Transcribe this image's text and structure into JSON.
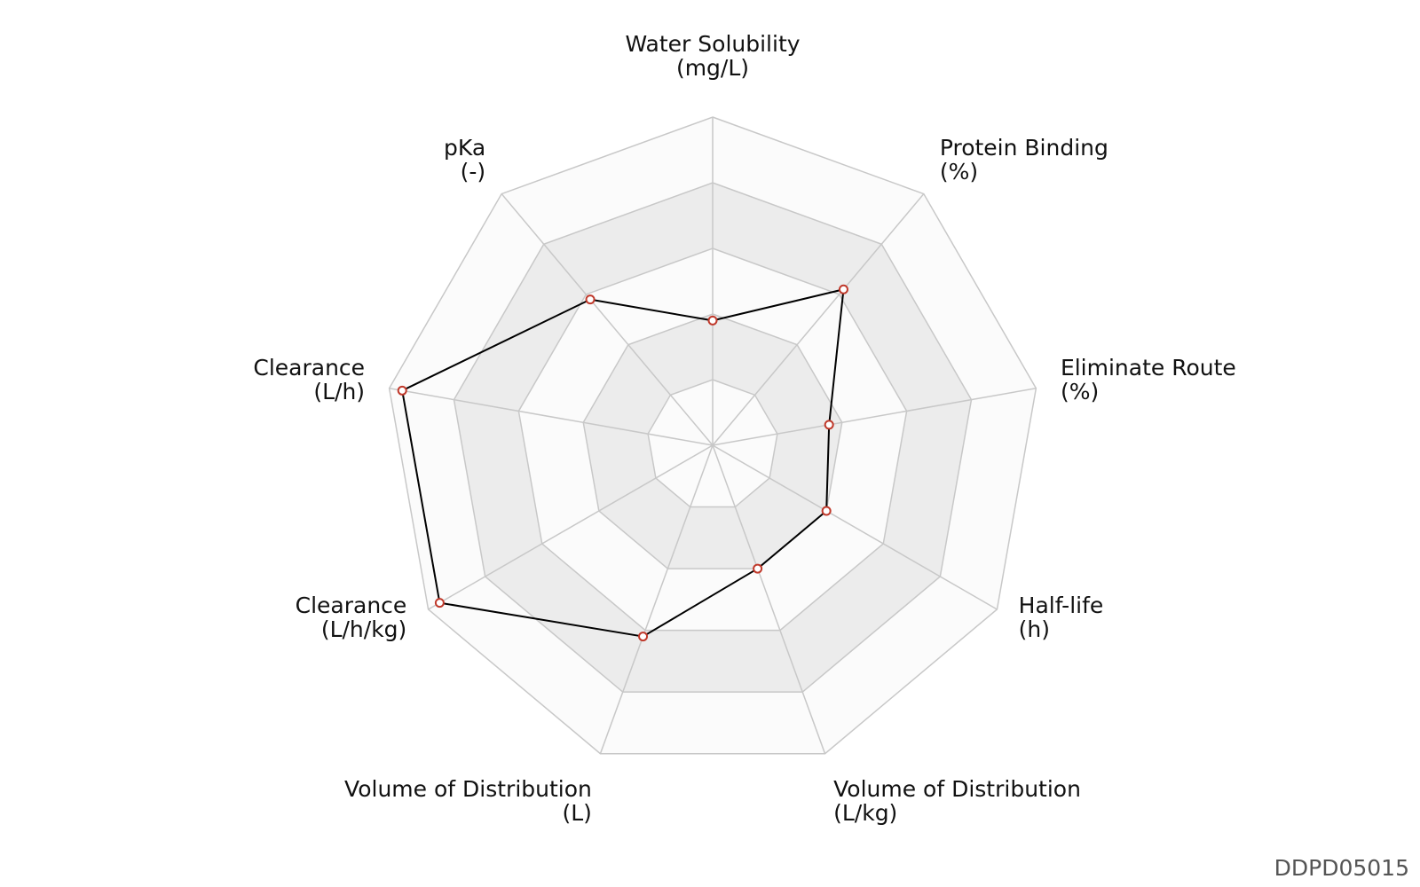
{
  "chart_data": {
    "type": "radar",
    "axes": [
      {
        "label": "Water Solubility",
        "unit": "(mg/L)",
        "value": 0.38
      },
      {
        "label": "Protein Binding",
        "unit": "(%)",
        "value": 0.62
      },
      {
        "label": "Eliminate Route",
        "unit": "(%)",
        "value": 0.36
      },
      {
        "label": "Half-life",
        "unit": "(h)",
        "value": 0.4
      },
      {
        "label": "Volume of Distribution",
        "unit": "(L/kg)",
        "value": 0.4
      },
      {
        "label": "Volume of Distribution",
        "unit": "(L)",
        "value": 0.62
      },
      {
        "label": "Clearance",
        "unit": "(L/h/kg)",
        "value": 0.96
      },
      {
        "label": "Clearance",
        "unit": "(L/h)",
        "value": 0.96
      },
      {
        "label": "pKa",
        "unit": "(-)",
        "value": 0.58
      }
    ],
    "rings": 5,
    "range": [
      0,
      1
    ],
    "colors": {
      "line": "#000000",
      "marker_edge": "#c0392b",
      "marker_fill": "#ffffff",
      "grid": "#c8c8c8",
      "band_dark": "#ececec",
      "band_light": "#fbfbfb"
    }
  },
  "id_label": "DDPD05015"
}
